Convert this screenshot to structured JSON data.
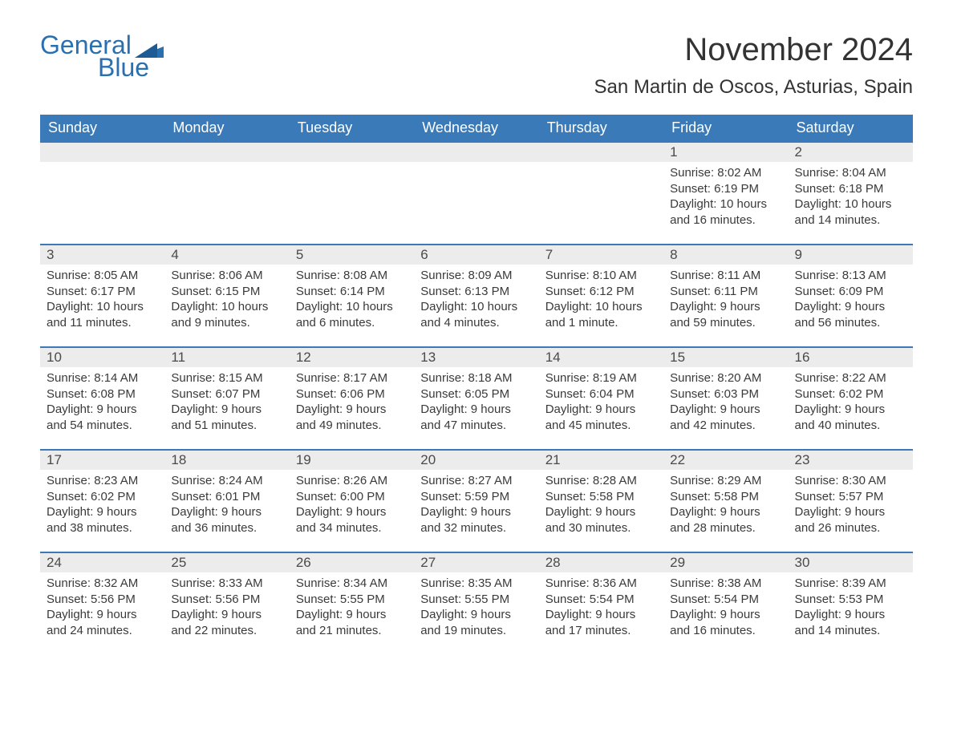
{
  "logo": {
    "word1": "General",
    "word2": "Blue",
    "flag_color": "#2a6fb0"
  },
  "title": "November 2024",
  "location": "San Martin de Oscos, Asturias, Spain",
  "colors": {
    "header_blue": "#3a7ab8",
    "week_border": "#3a7ab8",
    "daynum_bg": "#ececec",
    "text": "#3a3a3a",
    "logo_color": "#2a6fb0"
  },
  "typography": {
    "title_fontsize": 40,
    "location_fontsize": 24,
    "dayhead_fontsize": 18,
    "body_fontsize": 15
  },
  "day_labels": [
    "Sunday",
    "Monday",
    "Tuesday",
    "Wednesday",
    "Thursday",
    "Friday",
    "Saturday"
  ],
  "weeks": [
    [
      {
        "empty": true
      },
      {
        "empty": true
      },
      {
        "empty": true
      },
      {
        "empty": true
      },
      {
        "empty": true
      },
      {
        "day": "1",
        "sunrise": "Sunrise: 8:02 AM",
        "sunset": "Sunset: 6:19 PM",
        "daylight1": "Daylight: 10 hours",
        "daylight2": "and 16 minutes."
      },
      {
        "day": "2",
        "sunrise": "Sunrise: 8:04 AM",
        "sunset": "Sunset: 6:18 PM",
        "daylight1": "Daylight: 10 hours",
        "daylight2": "and 14 minutes."
      }
    ],
    [
      {
        "day": "3",
        "sunrise": "Sunrise: 8:05 AM",
        "sunset": "Sunset: 6:17 PM",
        "daylight1": "Daylight: 10 hours",
        "daylight2": "and 11 minutes."
      },
      {
        "day": "4",
        "sunrise": "Sunrise: 8:06 AM",
        "sunset": "Sunset: 6:15 PM",
        "daylight1": "Daylight: 10 hours",
        "daylight2": "and 9 minutes."
      },
      {
        "day": "5",
        "sunrise": "Sunrise: 8:08 AM",
        "sunset": "Sunset: 6:14 PM",
        "daylight1": "Daylight: 10 hours",
        "daylight2": "and 6 minutes."
      },
      {
        "day": "6",
        "sunrise": "Sunrise: 8:09 AM",
        "sunset": "Sunset: 6:13 PM",
        "daylight1": "Daylight: 10 hours",
        "daylight2": "and 4 minutes."
      },
      {
        "day": "7",
        "sunrise": "Sunrise: 8:10 AM",
        "sunset": "Sunset: 6:12 PM",
        "daylight1": "Daylight: 10 hours",
        "daylight2": "and 1 minute."
      },
      {
        "day": "8",
        "sunrise": "Sunrise: 8:11 AM",
        "sunset": "Sunset: 6:11 PM",
        "daylight1": "Daylight: 9 hours",
        "daylight2": "and 59 minutes."
      },
      {
        "day": "9",
        "sunrise": "Sunrise: 8:13 AM",
        "sunset": "Sunset: 6:09 PM",
        "daylight1": "Daylight: 9 hours",
        "daylight2": "and 56 minutes."
      }
    ],
    [
      {
        "day": "10",
        "sunrise": "Sunrise: 8:14 AM",
        "sunset": "Sunset: 6:08 PM",
        "daylight1": "Daylight: 9 hours",
        "daylight2": "and 54 minutes."
      },
      {
        "day": "11",
        "sunrise": "Sunrise: 8:15 AM",
        "sunset": "Sunset: 6:07 PM",
        "daylight1": "Daylight: 9 hours",
        "daylight2": "and 51 minutes."
      },
      {
        "day": "12",
        "sunrise": "Sunrise: 8:17 AM",
        "sunset": "Sunset: 6:06 PM",
        "daylight1": "Daylight: 9 hours",
        "daylight2": "and 49 minutes."
      },
      {
        "day": "13",
        "sunrise": "Sunrise: 8:18 AM",
        "sunset": "Sunset: 6:05 PM",
        "daylight1": "Daylight: 9 hours",
        "daylight2": "and 47 minutes."
      },
      {
        "day": "14",
        "sunrise": "Sunrise: 8:19 AM",
        "sunset": "Sunset: 6:04 PM",
        "daylight1": "Daylight: 9 hours",
        "daylight2": "and 45 minutes."
      },
      {
        "day": "15",
        "sunrise": "Sunrise: 8:20 AM",
        "sunset": "Sunset: 6:03 PM",
        "daylight1": "Daylight: 9 hours",
        "daylight2": "and 42 minutes."
      },
      {
        "day": "16",
        "sunrise": "Sunrise: 8:22 AM",
        "sunset": "Sunset: 6:02 PM",
        "daylight1": "Daylight: 9 hours",
        "daylight2": "and 40 minutes."
      }
    ],
    [
      {
        "day": "17",
        "sunrise": "Sunrise: 8:23 AM",
        "sunset": "Sunset: 6:02 PM",
        "daylight1": "Daylight: 9 hours",
        "daylight2": "and 38 minutes."
      },
      {
        "day": "18",
        "sunrise": "Sunrise: 8:24 AM",
        "sunset": "Sunset: 6:01 PM",
        "daylight1": "Daylight: 9 hours",
        "daylight2": "and 36 minutes."
      },
      {
        "day": "19",
        "sunrise": "Sunrise: 8:26 AM",
        "sunset": "Sunset: 6:00 PM",
        "daylight1": "Daylight: 9 hours",
        "daylight2": "and 34 minutes."
      },
      {
        "day": "20",
        "sunrise": "Sunrise: 8:27 AM",
        "sunset": "Sunset: 5:59 PM",
        "daylight1": "Daylight: 9 hours",
        "daylight2": "and 32 minutes."
      },
      {
        "day": "21",
        "sunrise": "Sunrise: 8:28 AM",
        "sunset": "Sunset: 5:58 PM",
        "daylight1": "Daylight: 9 hours",
        "daylight2": "and 30 minutes."
      },
      {
        "day": "22",
        "sunrise": "Sunrise: 8:29 AM",
        "sunset": "Sunset: 5:58 PM",
        "daylight1": "Daylight: 9 hours",
        "daylight2": "and 28 minutes."
      },
      {
        "day": "23",
        "sunrise": "Sunrise: 8:30 AM",
        "sunset": "Sunset: 5:57 PM",
        "daylight1": "Daylight: 9 hours",
        "daylight2": "and 26 minutes."
      }
    ],
    [
      {
        "day": "24",
        "sunrise": "Sunrise: 8:32 AM",
        "sunset": "Sunset: 5:56 PM",
        "daylight1": "Daylight: 9 hours",
        "daylight2": "and 24 minutes."
      },
      {
        "day": "25",
        "sunrise": "Sunrise: 8:33 AM",
        "sunset": "Sunset: 5:56 PM",
        "daylight1": "Daylight: 9 hours",
        "daylight2": "and 22 minutes."
      },
      {
        "day": "26",
        "sunrise": "Sunrise: 8:34 AM",
        "sunset": "Sunset: 5:55 PM",
        "daylight1": "Daylight: 9 hours",
        "daylight2": "and 21 minutes."
      },
      {
        "day": "27",
        "sunrise": "Sunrise: 8:35 AM",
        "sunset": "Sunset: 5:55 PM",
        "daylight1": "Daylight: 9 hours",
        "daylight2": "and 19 minutes."
      },
      {
        "day": "28",
        "sunrise": "Sunrise: 8:36 AM",
        "sunset": "Sunset: 5:54 PM",
        "daylight1": "Daylight: 9 hours",
        "daylight2": "and 17 minutes."
      },
      {
        "day": "29",
        "sunrise": "Sunrise: 8:38 AM",
        "sunset": "Sunset: 5:54 PM",
        "daylight1": "Daylight: 9 hours",
        "daylight2": "and 16 minutes."
      },
      {
        "day": "30",
        "sunrise": "Sunrise: 8:39 AM",
        "sunset": "Sunset: 5:53 PM",
        "daylight1": "Daylight: 9 hours",
        "daylight2": "and 14 minutes."
      }
    ]
  ]
}
